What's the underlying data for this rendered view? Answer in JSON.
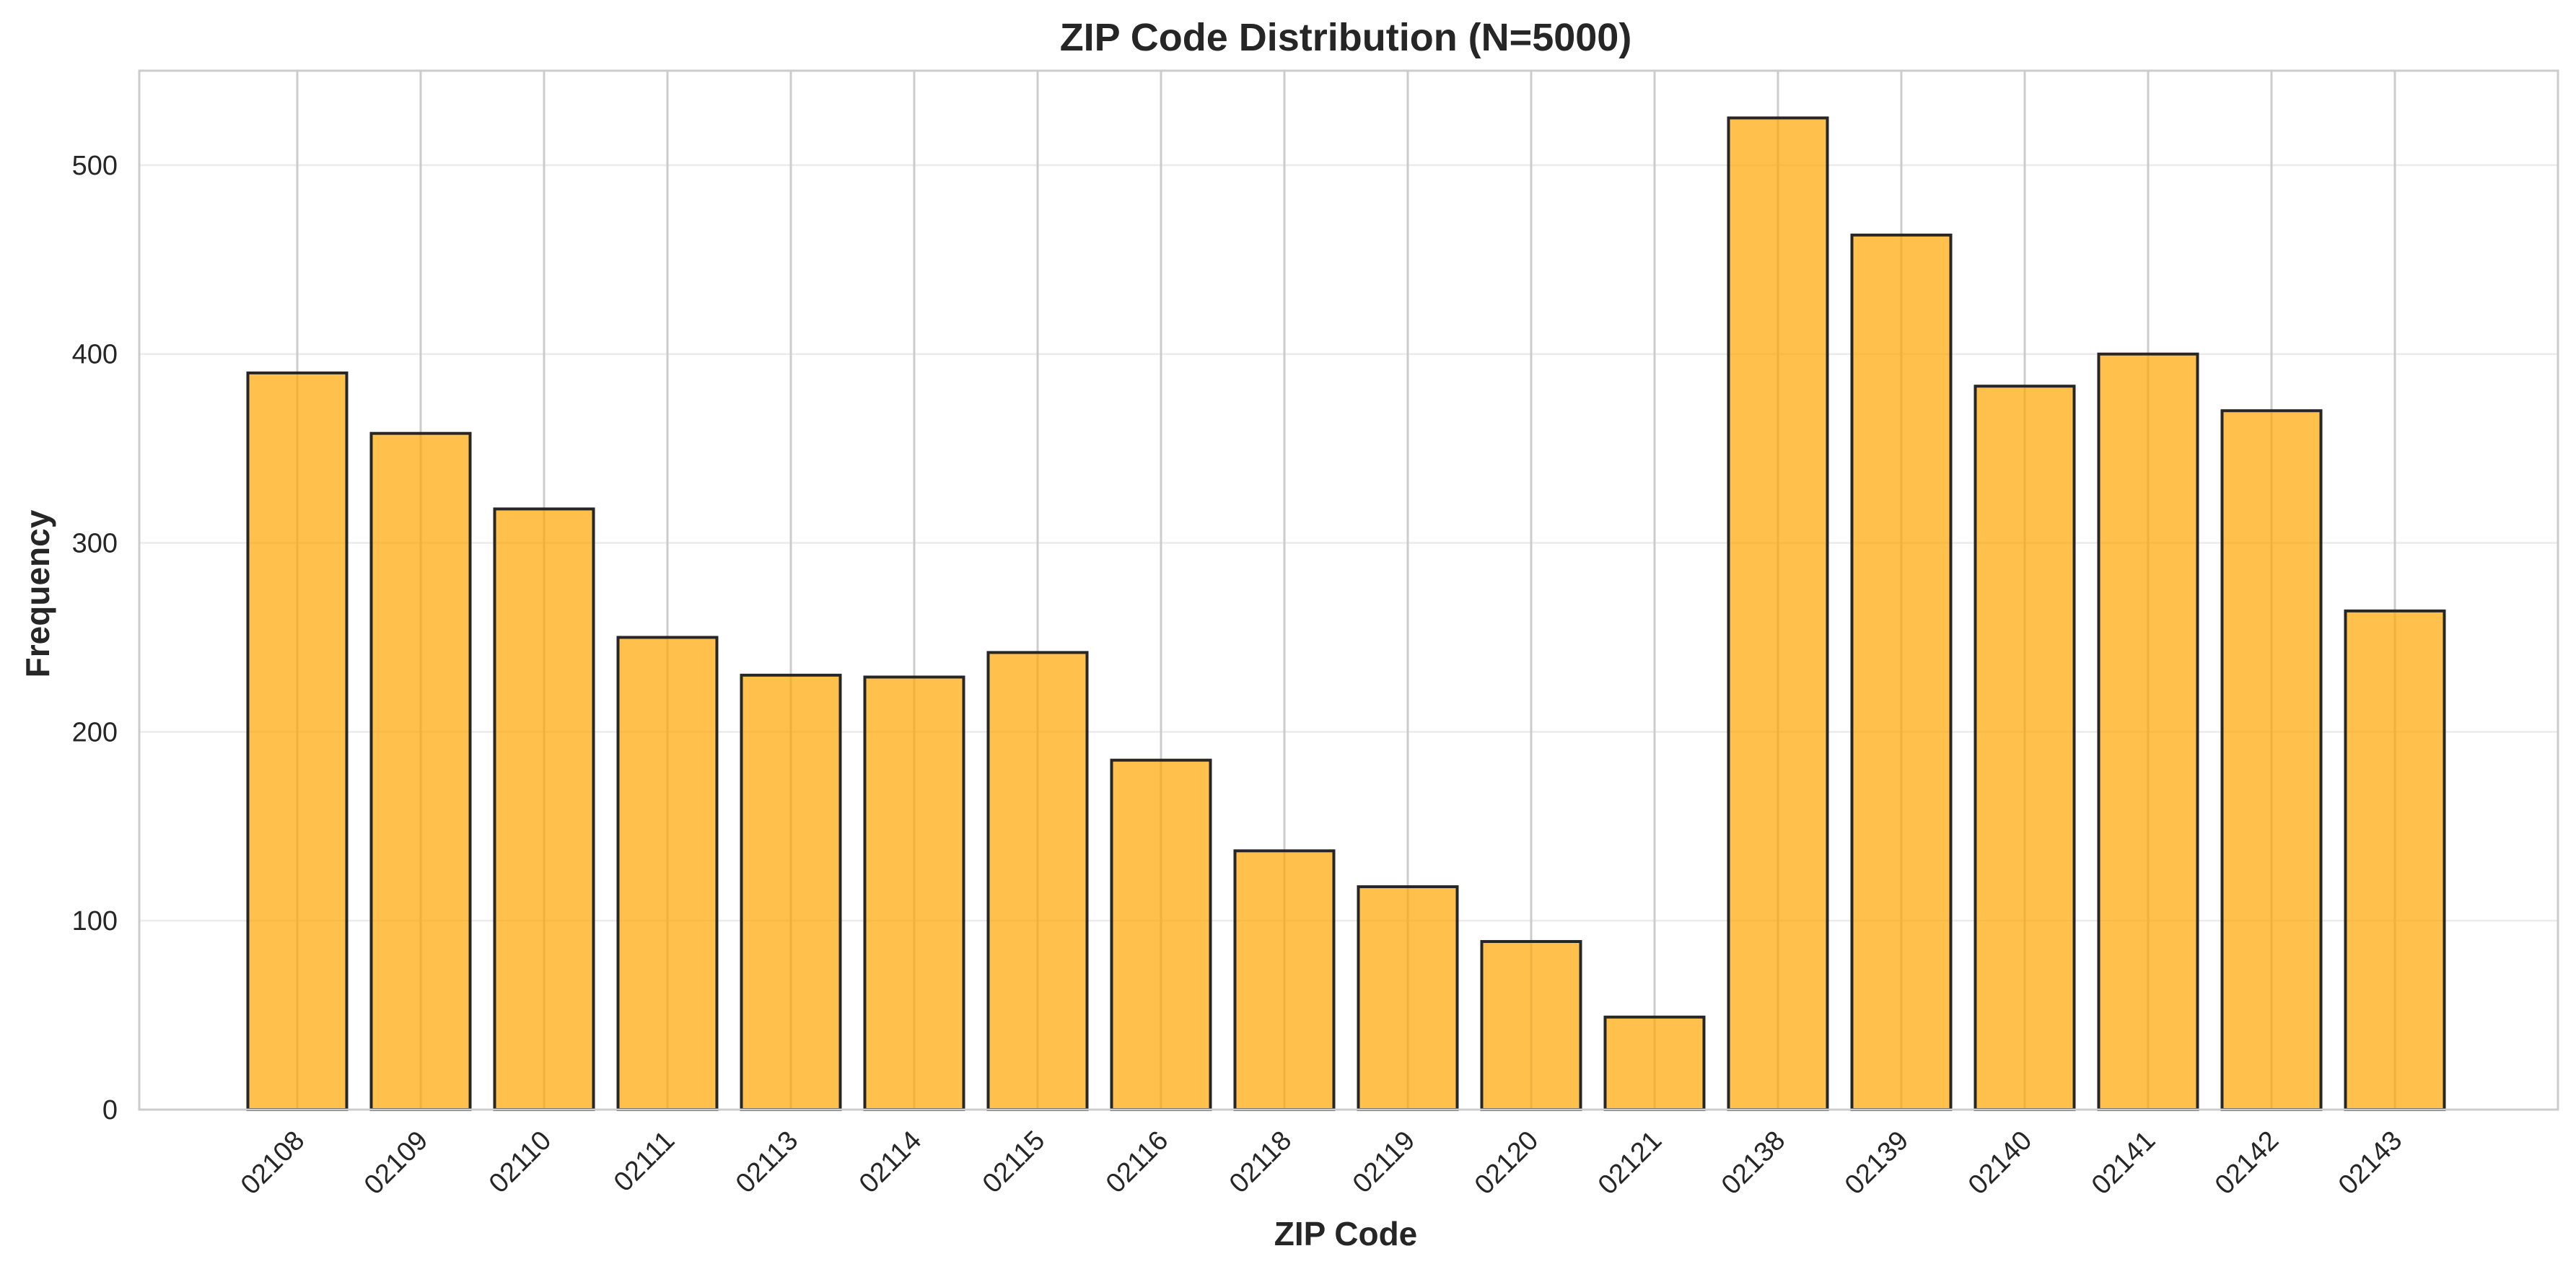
{
  "chart_data": {
    "type": "bar",
    "title": "ZIP Code Distribution (N=5000)",
    "xlabel": "ZIP Code",
    "ylabel": "Frequency",
    "categories": [
      "02108",
      "02109",
      "02110",
      "02111",
      "02113",
      "02114",
      "02115",
      "02116",
      "02118",
      "02119",
      "02120",
      "02121",
      "02138",
      "02139",
      "02140",
      "02141",
      "02142",
      "02143"
    ],
    "values": [
      390,
      358,
      318,
      250,
      230,
      229,
      242,
      185,
      137,
      118,
      89,
      49,
      525,
      463,
      383,
      400,
      370,
      264
    ],
    "ylim": [
      0,
      550
    ],
    "yticks": [
      0,
      100,
      200,
      300,
      400,
      500
    ],
    "bar_color": "#FFA500",
    "edge_color": "#262626",
    "grid": true,
    "legend": "none"
  }
}
